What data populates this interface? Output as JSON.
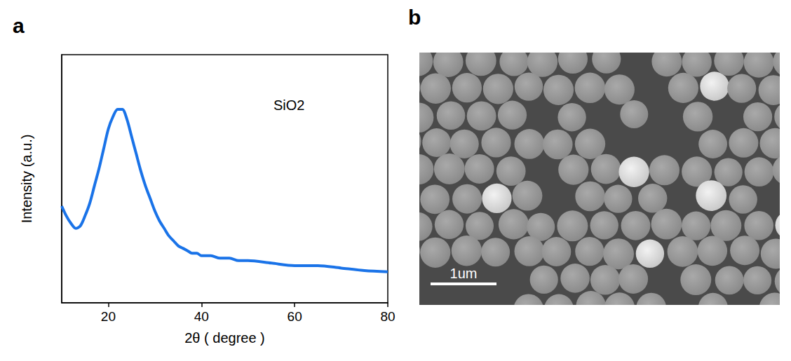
{
  "chart_data": {
    "type": "line",
    "annotations": [
      "SiO2"
    ],
    "x_label": "2θ ( degree )",
    "y_label": "Intensity (a.u.)",
    "x": [
      10,
      11,
      12,
      13,
      14,
      15,
      16,
      17,
      18,
      19,
      20,
      21,
      22,
      23,
      24,
      25,
      26,
      27,
      28,
      29,
      30,
      31,
      32,
      33,
      34,
      35,
      36,
      37,
      38,
      39,
      40,
      42,
      44,
      46,
      48,
      50,
      55,
      60,
      65,
      70,
      75,
      80
    ],
    "values": [
      39,
      35,
      32,
      30,
      31,
      35,
      40,
      47,
      54,
      62,
      70,
      75,
      78,
      78,
      74,
      67,
      60,
      53,
      47,
      42,
      37,
      33,
      30,
      27,
      25,
      23,
      22,
      21,
      20,
      20,
      19,
      19,
      18,
      18,
      17,
      17,
      16,
      15,
      15,
      14,
      13,
      12.5
    ],
    "color": "#1a73e8",
    "xlim": [
      10,
      80
    ],
    "xticks": [
      20,
      40,
      60,
      80
    ],
    "ylim": [
      0,
      100
    ],
    "yticks": [],
    "tick_labels": "x",
    "grid": false
  },
  "figure": {
    "panel_labels": [
      "a",
      "b"
    ],
    "image_panel": {
      "scale_bar": "1um"
    }
  }
}
